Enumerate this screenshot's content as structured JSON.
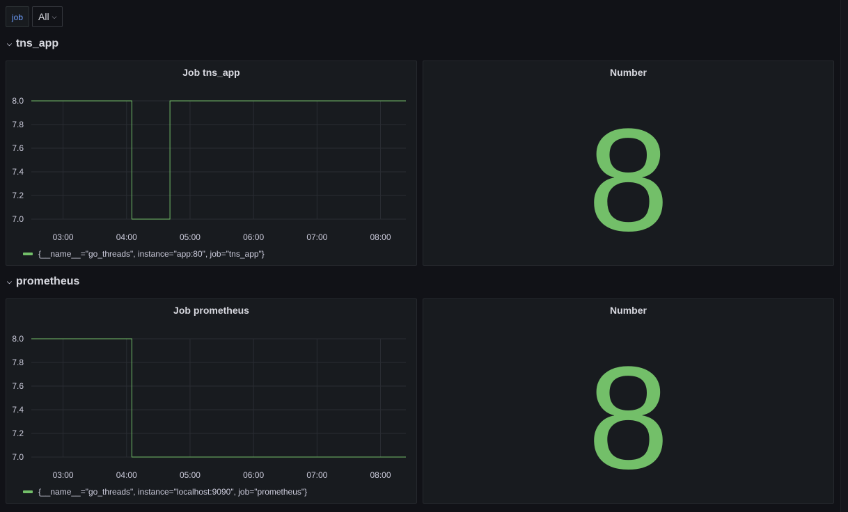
{
  "variables": {
    "job_label": "job",
    "job_value": "All"
  },
  "rows": [
    {
      "title": "tns_app",
      "graph": {
        "title": "Job tns_app",
        "legend": "{__name__=\"go_threads\", instance=\"app:80\", job=\"tns_app\"}"
      },
      "stat": {
        "title": "Number",
        "value": "8"
      }
    },
    {
      "title": "prometheus",
      "graph": {
        "title": "Job prometheus",
        "legend": "{__name__=\"go_threads\", instance=\"localhost:9090\", job=\"prometheus\"}"
      },
      "stat": {
        "title": "Number",
        "value": "8"
      }
    }
  ],
  "colors": {
    "series": "#73bf69",
    "background": "#111217",
    "panel": "#181b1f"
  },
  "chart_data": [
    {
      "type": "line",
      "title": "Job tns_app",
      "x_ticks": [
        "03:00",
        "04:00",
        "05:00",
        "06:00",
        "07:00",
        "08:00"
      ],
      "y_ticks": [
        "7.0",
        "7.2",
        "7.4",
        "7.6",
        "7.8",
        "8.0"
      ],
      "ylim": [
        7.0,
        8.0
      ],
      "xlim": [
        "02:30",
        "08:24"
      ],
      "grid": true,
      "legend_position": "bottom-left",
      "series": [
        {
          "name": "{__name__=\"go_threads\", instance=\"app:80\", job=\"tns_app\"}",
          "step": true,
          "points": [
            [
              "02:30",
              8.0
            ],
            [
              "04:05",
              8.0
            ],
            [
              "04:05",
              7.0
            ],
            [
              "04:41",
              7.0
            ],
            [
              "04:41",
              8.0
            ],
            [
              "08:24",
              8.0
            ]
          ]
        }
      ]
    },
    {
      "type": "line",
      "title": "Job prometheus",
      "x_ticks": [
        "03:00",
        "04:00",
        "05:00",
        "06:00",
        "07:00",
        "08:00"
      ],
      "y_ticks": [
        "7.0",
        "7.2",
        "7.4",
        "7.6",
        "7.8",
        "8.0"
      ],
      "ylim": [
        7.0,
        8.0
      ],
      "xlim": [
        "02:30",
        "08:24"
      ],
      "grid": true,
      "legend_position": "bottom-left",
      "series": [
        {
          "name": "{__name__=\"go_threads\", instance=\"localhost:9090\", job=\"prometheus\"}",
          "step": true,
          "points": [
            [
              "02:30",
              8.0
            ],
            [
              "04:05",
              8.0
            ],
            [
              "04:05",
              7.0
            ],
            [
              "08:24",
              7.0
            ]
          ]
        }
      ]
    }
  ]
}
